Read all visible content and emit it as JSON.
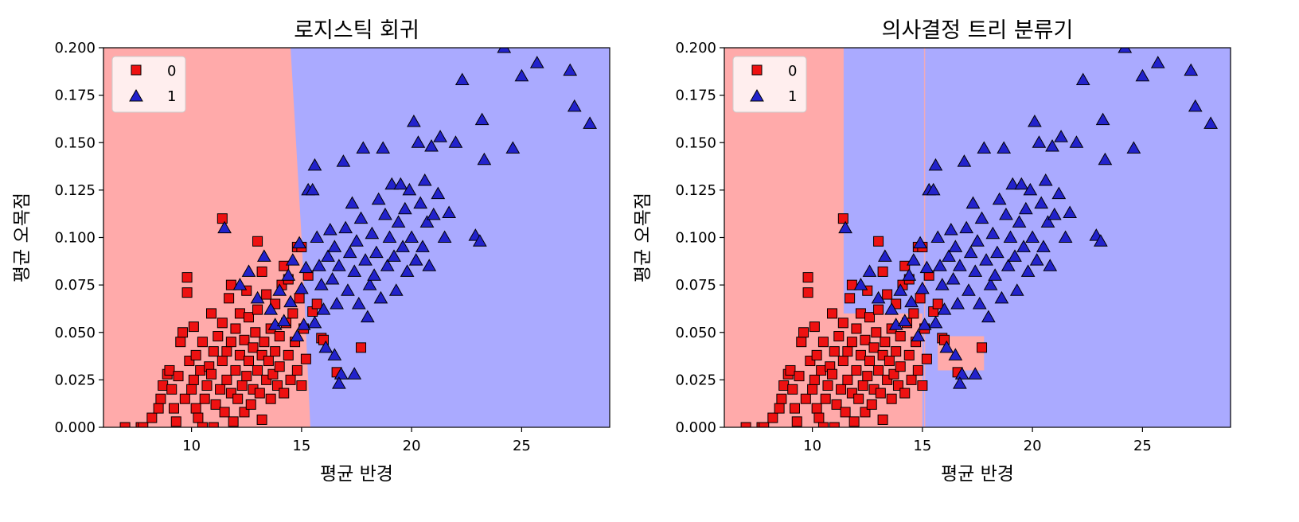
{
  "colors": {
    "region_class0": "#ffaaaa",
    "region_class1": "#aaaaff",
    "marker_class0": "#ee1111",
    "marker_class1": "#2222cc",
    "edge": "#000000"
  },
  "chart_data": [
    {
      "type": "scatter",
      "title": "로지스틱 회귀",
      "xlabel": "평균 반경",
      "ylabel": "평균 오목점",
      "xlim": [
        6,
        29
      ],
      "ylim": [
        0,
        0.2
      ],
      "xticks": [
        "10",
        "15",
        "20",
        "25"
      ],
      "xtick_values": [
        10,
        15,
        20,
        25
      ],
      "yticks": [
        "0.000",
        "0.025",
        "0.050",
        "0.075",
        "0.100",
        "0.125",
        "0.150",
        "0.175",
        "0.200"
      ],
      "ytick_values": [
        0,
        0.025,
        0.05,
        0.075,
        0.1,
        0.125,
        0.15,
        0.175,
        0.2
      ],
      "grid": false,
      "legend": {
        "placement": "top-left",
        "entries": [
          "0",
          "1"
        ]
      },
      "decision_regions": {
        "class0": "left of boundary",
        "class1": "right of boundary",
        "boundary": [
          [
            15.4,
            0
          ],
          [
            15.0,
            0.1
          ],
          [
            14.5,
            0.2
          ]
        ]
      },
      "series": [
        {
          "name": "0",
          "marker": "square",
          "points": [
            [
              6.98,
              0.0
            ],
            [
              7.7,
              0.0
            ],
            [
              7.8,
              0.0
            ],
            [
              8.2,
              0.005
            ],
            [
              8.5,
              0.01
            ],
            [
              8.6,
              0.015
            ],
            [
              8.7,
              0.022
            ],
            [
              8.9,
              0.028
            ],
            [
              9.0,
              0.03
            ],
            [
              9.1,
              0.02
            ],
            [
              9.2,
              0.01
            ],
            [
              9.3,
              0.003
            ],
            [
              9.4,
              0.027
            ],
            [
              9.5,
              0.045
            ],
            [
              9.6,
              0.05
            ],
            [
              9.7,
              0.015
            ],
            [
              9.8,
              0.071
            ],
            [
              9.8,
              0.079
            ],
            [
              9.9,
              0.035
            ],
            [
              10.0,
              0.02
            ],
            [
              10.1,
              0.025
            ],
            [
              10.1,
              0.053
            ],
            [
              10.2,
              0.01
            ],
            [
              10.2,
              0.038
            ],
            [
              10.3,
              0.005
            ],
            [
              10.4,
              0.03
            ],
            [
              10.5,
              0.045
            ],
            [
              10.5,
              0.0
            ],
            [
              10.6,
              0.015
            ],
            [
              10.7,
              0.022
            ],
            [
              10.8,
              0.032
            ],
            [
              10.9,
              0.028
            ],
            [
              10.9,
              0.06
            ],
            [
              11.0,
              0.0
            ],
            [
              11.0,
              0.04
            ],
            [
              11.1,
              0.012
            ],
            [
              11.2,
              0.048
            ],
            [
              11.3,
              0.02
            ],
            [
              11.4,
              0.035
            ],
            [
              11.4,
              0.055
            ],
            [
              11.5,
              0.008
            ],
            [
              11.6,
              0.025
            ],
            [
              11.6,
              0.04
            ],
            [
              11.7,
              0.068
            ],
            [
              11.8,
              0.018
            ],
            [
              11.8,
              0.045
            ],
            [
              11.9,
              0.003
            ],
            [
              12.0,
              0.03
            ],
            [
              12.0,
              0.052
            ],
            [
              12.1,
              0.015
            ],
            [
              12.2,
              0.038
            ],
            [
              12.2,
              0.06
            ],
            [
              12.3,
              0.022
            ],
            [
              12.4,
              0.046
            ],
            [
              12.4,
              0.008
            ],
            [
              12.5,
              0.027
            ],
            [
              12.6,
              0.035
            ],
            [
              12.6,
              0.058
            ],
            [
              12.7,
              0.012
            ],
            [
              12.8,
              0.042
            ],
            [
              12.8,
              0.02
            ],
            [
              12.9,
              0.05
            ],
            [
              13.0,
              0.03
            ],
            [
              13.0,
              0.062
            ],
            [
              13.1,
              0.018
            ],
            [
              13.2,
              0.038
            ],
            [
              13.2,
              0.004
            ],
            [
              13.3,
              0.045
            ],
            [
              13.4,
              0.025
            ],
            [
              13.4,
              0.07
            ],
            [
              13.5,
              0.035
            ],
            [
              13.6,
              0.052
            ],
            [
              13.6,
              0.015
            ],
            [
              13.7,
              0.028
            ],
            [
              13.8,
              0.04
            ],
            [
              13.8,
              0.065
            ],
            [
              13.9,
              0.022
            ],
            [
              14.0,
              0.048
            ],
            [
              14.0,
              0.032
            ],
            [
              14.1,
              0.075
            ],
            [
              14.2,
              0.018
            ],
            [
              14.3,
              0.055
            ],
            [
              14.4,
              0.038
            ],
            [
              14.4,
              0.078
            ],
            [
              14.5,
              0.025
            ],
            [
              14.6,
              0.06
            ],
            [
              14.7,
              0.045
            ],
            [
              14.8,
              0.03
            ],
            [
              14.9,
              0.068
            ],
            [
              15.0,
              0.022
            ],
            [
              15.1,
              0.052
            ],
            [
              15.2,
              0.036
            ],
            [
              15.3,
              0.08
            ],
            [
              15.5,
              0.061
            ],
            [
              15.7,
              0.065
            ],
            [
              15.9,
              0.047
            ],
            [
              16.0,
              0.046
            ],
            [
              16.6,
              0.029
            ],
            [
              17.7,
              0.042
            ],
            [
              11.4,
              0.11
            ],
            [
              11.8,
              0.075
            ],
            [
              12.5,
              0.072
            ],
            [
              13.0,
              0.098
            ],
            [
              13.2,
              0.082
            ],
            [
              14.2,
              0.085
            ],
            [
              14.8,
              0.095
            ],
            [
              15.0,
              0.095
            ]
          ]
        },
        {
          "name": "1",
          "marker": "triangle",
          "points": [
            [
              11.5,
              0.105
            ],
            [
              12.2,
              0.075
            ],
            [
              12.6,
              0.082
            ],
            [
              13.0,
              0.068
            ],
            [
              13.3,
              0.09
            ],
            [
              13.6,
              0.062
            ],
            [
              13.8,
              0.054
            ],
            [
              14.0,
              0.072
            ],
            [
              14.2,
              0.056
            ],
            [
              14.4,
              0.08
            ],
            [
              14.5,
              0.066
            ],
            [
              14.6,
              0.088
            ],
            [
              14.8,
              0.048
            ],
            [
              14.9,
              0.097
            ],
            [
              15.0,
              0.073
            ],
            [
              15.1,
              0.054
            ],
            [
              15.2,
              0.084
            ],
            [
              15.3,
              0.125
            ],
            [
              15.5,
              0.125
            ],
            [
              15.6,
              0.138
            ],
            [
              15.7,
              0.1
            ],
            [
              15.8,
              0.085
            ],
            [
              15.9,
              0.075
            ],
            [
              16.0,
              0.062
            ],
            [
              16.2,
              0.09
            ],
            [
              16.3,
              0.104
            ],
            [
              16.4,
              0.078
            ],
            [
              16.5,
              0.095
            ],
            [
              16.6,
              0.065
            ],
            [
              16.7,
              0.085
            ],
            [
              16.8,
              0.028
            ],
            [
              16.9,
              0.14
            ],
            [
              17.0,
              0.105
            ],
            [
              17.1,
              0.072
            ],
            [
              17.2,
              0.092
            ],
            [
              17.3,
              0.118
            ],
            [
              17.4,
              0.082
            ],
            [
              17.5,
              0.098
            ],
            [
              17.6,
              0.065
            ],
            [
              17.7,
              0.11
            ],
            [
              17.8,
              0.147
            ],
            [
              17.9,
              0.088
            ],
            [
              18.0,
              0.058
            ],
            [
              18.1,
              0.075
            ],
            [
              18.2,
              0.102
            ],
            [
              18.3,
              0.08
            ],
            [
              18.4,
              0.092
            ],
            [
              18.5,
              0.12
            ],
            [
              18.6,
              0.068
            ],
            [
              18.7,
              0.147
            ],
            [
              18.8,
              0.112
            ],
            [
              18.9,
              0.085
            ],
            [
              19.0,
              0.1
            ],
            [
              19.1,
              0.128
            ],
            [
              19.2,
              0.09
            ],
            [
              19.3,
              0.072
            ],
            [
              19.4,
              0.108
            ],
            [
              19.5,
              0.128
            ],
            [
              19.6,
              0.095
            ],
            [
              19.7,
              0.115
            ],
            [
              19.8,
              0.082
            ],
            [
              19.9,
              0.125
            ],
            [
              20.0,
              0.1
            ],
            [
              20.1,
              0.161
            ],
            [
              20.2,
              0.088
            ],
            [
              20.3,
              0.15
            ],
            [
              20.4,
              0.118
            ],
            [
              20.5,
              0.095
            ],
            [
              20.6,
              0.13
            ],
            [
              20.7,
              0.108
            ],
            [
              20.8,
              0.085
            ],
            [
              20.9,
              0.148
            ],
            [
              21.0,
              0.112
            ],
            [
              21.2,
              0.123
            ],
            [
              21.3,
              0.153
            ],
            [
              21.5,
              0.1
            ],
            [
              21.7,
              0.113
            ],
            [
              22.0,
              0.15
            ],
            [
              22.3,
              0.183
            ],
            [
              22.9,
              0.101
            ],
            [
              23.1,
              0.098
            ],
            [
              23.2,
              0.162
            ],
            [
              23.3,
              0.141
            ],
            [
              24.2,
              0.2
            ],
            [
              24.6,
              0.147
            ],
            [
              25.0,
              0.185
            ],
            [
              25.7,
              0.192
            ],
            [
              27.2,
              0.188
            ],
            [
              27.4,
              0.169
            ],
            [
              28.1,
              0.16
            ],
            [
              16.5,
              0.038
            ],
            [
              17.4,
              0.028
            ],
            [
              16.7,
              0.023
            ],
            [
              15.6,
              0.055
            ],
            [
              16.1,
              0.042
            ]
          ]
        }
      ]
    },
    {
      "type": "scatter",
      "title": "의사결정 트리 분류기",
      "xlabel": "평균 반경",
      "ylabel": "평균 오목점",
      "xlim": [
        6,
        29
      ],
      "ylim": [
        0,
        0.2
      ],
      "xticks": [
        "10",
        "15",
        "20",
        "25"
      ],
      "xtick_values": [
        10,
        15,
        20,
        25
      ],
      "yticks": [
        "0.000",
        "0.025",
        "0.050",
        "0.075",
        "0.100",
        "0.125",
        "0.150",
        "0.175",
        "0.200"
      ],
      "ytick_values": [
        0,
        0.025,
        0.05,
        0.075,
        0.1,
        0.125,
        0.15,
        0.175,
        0.2
      ],
      "grid": false,
      "legend": {
        "placement": "top-left",
        "entries": [
          "0",
          "1"
        ]
      },
      "decision_regions": {
        "class0": [
          [
            [
              6,
              0
            ],
            [
              11.4,
              0.2
            ]
          ],
          [
            [
              11.4,
              0
            ],
            [
              15.0,
              0.06
            ]
          ],
          [
            [
              15.7,
              0.03
            ],
            [
              17.8,
              0.048
            ]
          ]
        ],
        "class1": "elsewhere",
        "boundary_lines_x": [
          11.4,
          15.1
        ]
      },
      "series_ref": "same data as panel 1"
    }
  ]
}
